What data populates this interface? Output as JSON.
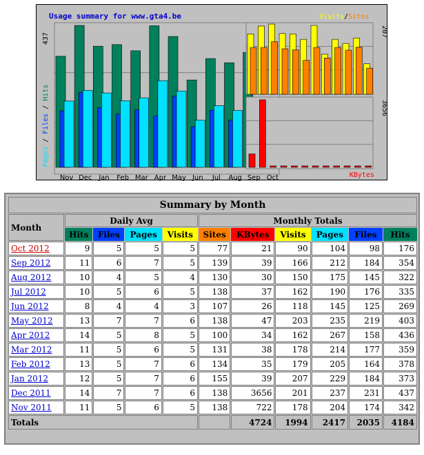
{
  "chart_data": [
    {
      "type": "bar",
      "title": "Usage summary for www.gta4.be",
      "categories": [
        "Nov",
        "Dec",
        "Jan",
        "Feb",
        "Mar",
        "Apr",
        "May",
        "Jun",
        "Jul",
        "Aug",
        "Sep",
        "Oct"
      ],
      "series": [
        {
          "name": "Hits",
          "color": "#00805c",
          "values": [
            342,
            437,
            373,
            378,
            359,
            436,
            403,
            269,
            335,
            322,
            354,
            176
          ]
        },
        {
          "name": "Files",
          "color": "#0040ff",
          "values": [
            174,
            231,
            184,
            164,
            177,
            158,
            219,
            125,
            176,
            145,
            184,
            98
          ]
        },
        {
          "name": "Pages",
          "color": "#00e0ff",
          "values": [
            204,
            237,
            229,
            205,
            214,
            267,
            235,
            145,
            190,
            175,
            212,
            104
          ]
        }
      ],
      "ylim": [
        0,
        437
      ],
      "ymax_label": "437",
      "ylabel_parts": [
        "Pages",
        "Files",
        "Hits"
      ]
    },
    {
      "type": "bar",
      "categories": [
        "Nov",
        "Dec",
        "Jan",
        "Feb",
        "Mar",
        "Apr",
        "May",
        "Jun",
        "Jul",
        "Aug",
        "Sep",
        "Oct"
      ],
      "series": [
        {
          "name": "Visits",
          "color": "#ffff00",
          "values": [
            178,
            201,
            207,
            179,
            178,
            162,
            203,
            118,
            162,
            150,
            166,
            90
          ]
        },
        {
          "name": "Sites",
          "color": "#ff8000",
          "values": [
            138,
            138,
            155,
            134,
            131,
            100,
            138,
            107,
            138,
            130,
            139,
            77
          ]
        }
      ],
      "ylim": [
        0,
        207
      ],
      "ymax_label": "207",
      "legend": [
        "Visits",
        "Sites"
      ]
    },
    {
      "type": "bar",
      "categories": [
        "Nov",
        "Dec",
        "Jan",
        "Feb",
        "Mar",
        "Apr",
        "May",
        "Jun",
        "Jul",
        "Aug",
        "Sep",
        "Oct"
      ],
      "series": [
        {
          "name": "KBytes",
          "color": "#ff0000",
          "values": [
            722,
            3656,
            39,
            35,
            38,
            34,
            47,
            26,
            37,
            30,
            39,
            21
          ]
        }
      ],
      "ylim": [
        0,
        3656
      ],
      "ymax_label": "3656",
      "legend": [
        "KBytes"
      ]
    }
  ],
  "summary": {
    "caption": "Summary by Month",
    "month_header": "Month",
    "daily_avg_header": "Daily Avg",
    "monthly_totals_header": "Monthly Totals",
    "daily_cols": [
      "Hits",
      "Files",
      "Pages",
      "Visits"
    ],
    "monthly_cols": [
      "Sites",
      "KBytes",
      "Visits",
      "Pages",
      "Files",
      "Hits"
    ],
    "rows": [
      {
        "month": "Oct 2012",
        "current": true,
        "d": [
          9,
          5,
          5,
          5
        ],
        "m": [
          77,
          21,
          90,
          104,
          98,
          176
        ]
      },
      {
        "month": "Sep 2012",
        "d": [
          11,
          6,
          7,
          5
        ],
        "m": [
          139,
          39,
          166,
          212,
          184,
          354
        ]
      },
      {
        "month": "Aug 2012",
        "d": [
          10,
          4,
          5,
          4
        ],
        "m": [
          130,
          30,
          150,
          175,
          145,
          322
        ]
      },
      {
        "month": "Jul 2012",
        "d": [
          10,
          5,
          6,
          5
        ],
        "m": [
          138,
          37,
          162,
          190,
          176,
          335
        ]
      },
      {
        "month": "Jun 2012",
        "d": [
          8,
          4,
          4,
          3
        ],
        "m": [
          107,
          26,
          118,
          145,
          125,
          269
        ]
      },
      {
        "month": "May 2012",
        "d": [
          13,
          7,
          7,
          6
        ],
        "m": [
          138,
          47,
          203,
          235,
          219,
          403
        ]
      },
      {
        "month": "Apr 2012",
        "d": [
          14,
          5,
          8,
          5
        ],
        "m": [
          100,
          34,
          162,
          267,
          158,
          436
        ]
      },
      {
        "month": "Mar 2012",
        "d": [
          11,
          5,
          6,
          5
        ],
        "m": [
          131,
          38,
          178,
          214,
          177,
          359
        ]
      },
      {
        "month": "Feb 2012",
        "d": [
          13,
          5,
          7,
          6
        ],
        "m": [
          134,
          35,
          179,
          205,
          164,
          378
        ]
      },
      {
        "month": "Jan 2012",
        "d": [
          12,
          5,
          7,
          6
        ],
        "m": [
          155,
          39,
          207,
          229,
          184,
          373
        ]
      },
      {
        "month": "Dec 2011",
        "d": [
          14,
          7,
          7,
          6
        ],
        "m": [
          138,
          3656,
          201,
          237,
          231,
          437
        ]
      },
      {
        "month": "Nov 2011",
        "d": [
          11,
          5,
          6,
          5
        ],
        "m": [
          138,
          722,
          178,
          204,
          174,
          342
        ]
      }
    ],
    "totals_label": "Totals",
    "totals": [
      4724,
      1994,
      2417,
      2035,
      4184
    ]
  }
}
